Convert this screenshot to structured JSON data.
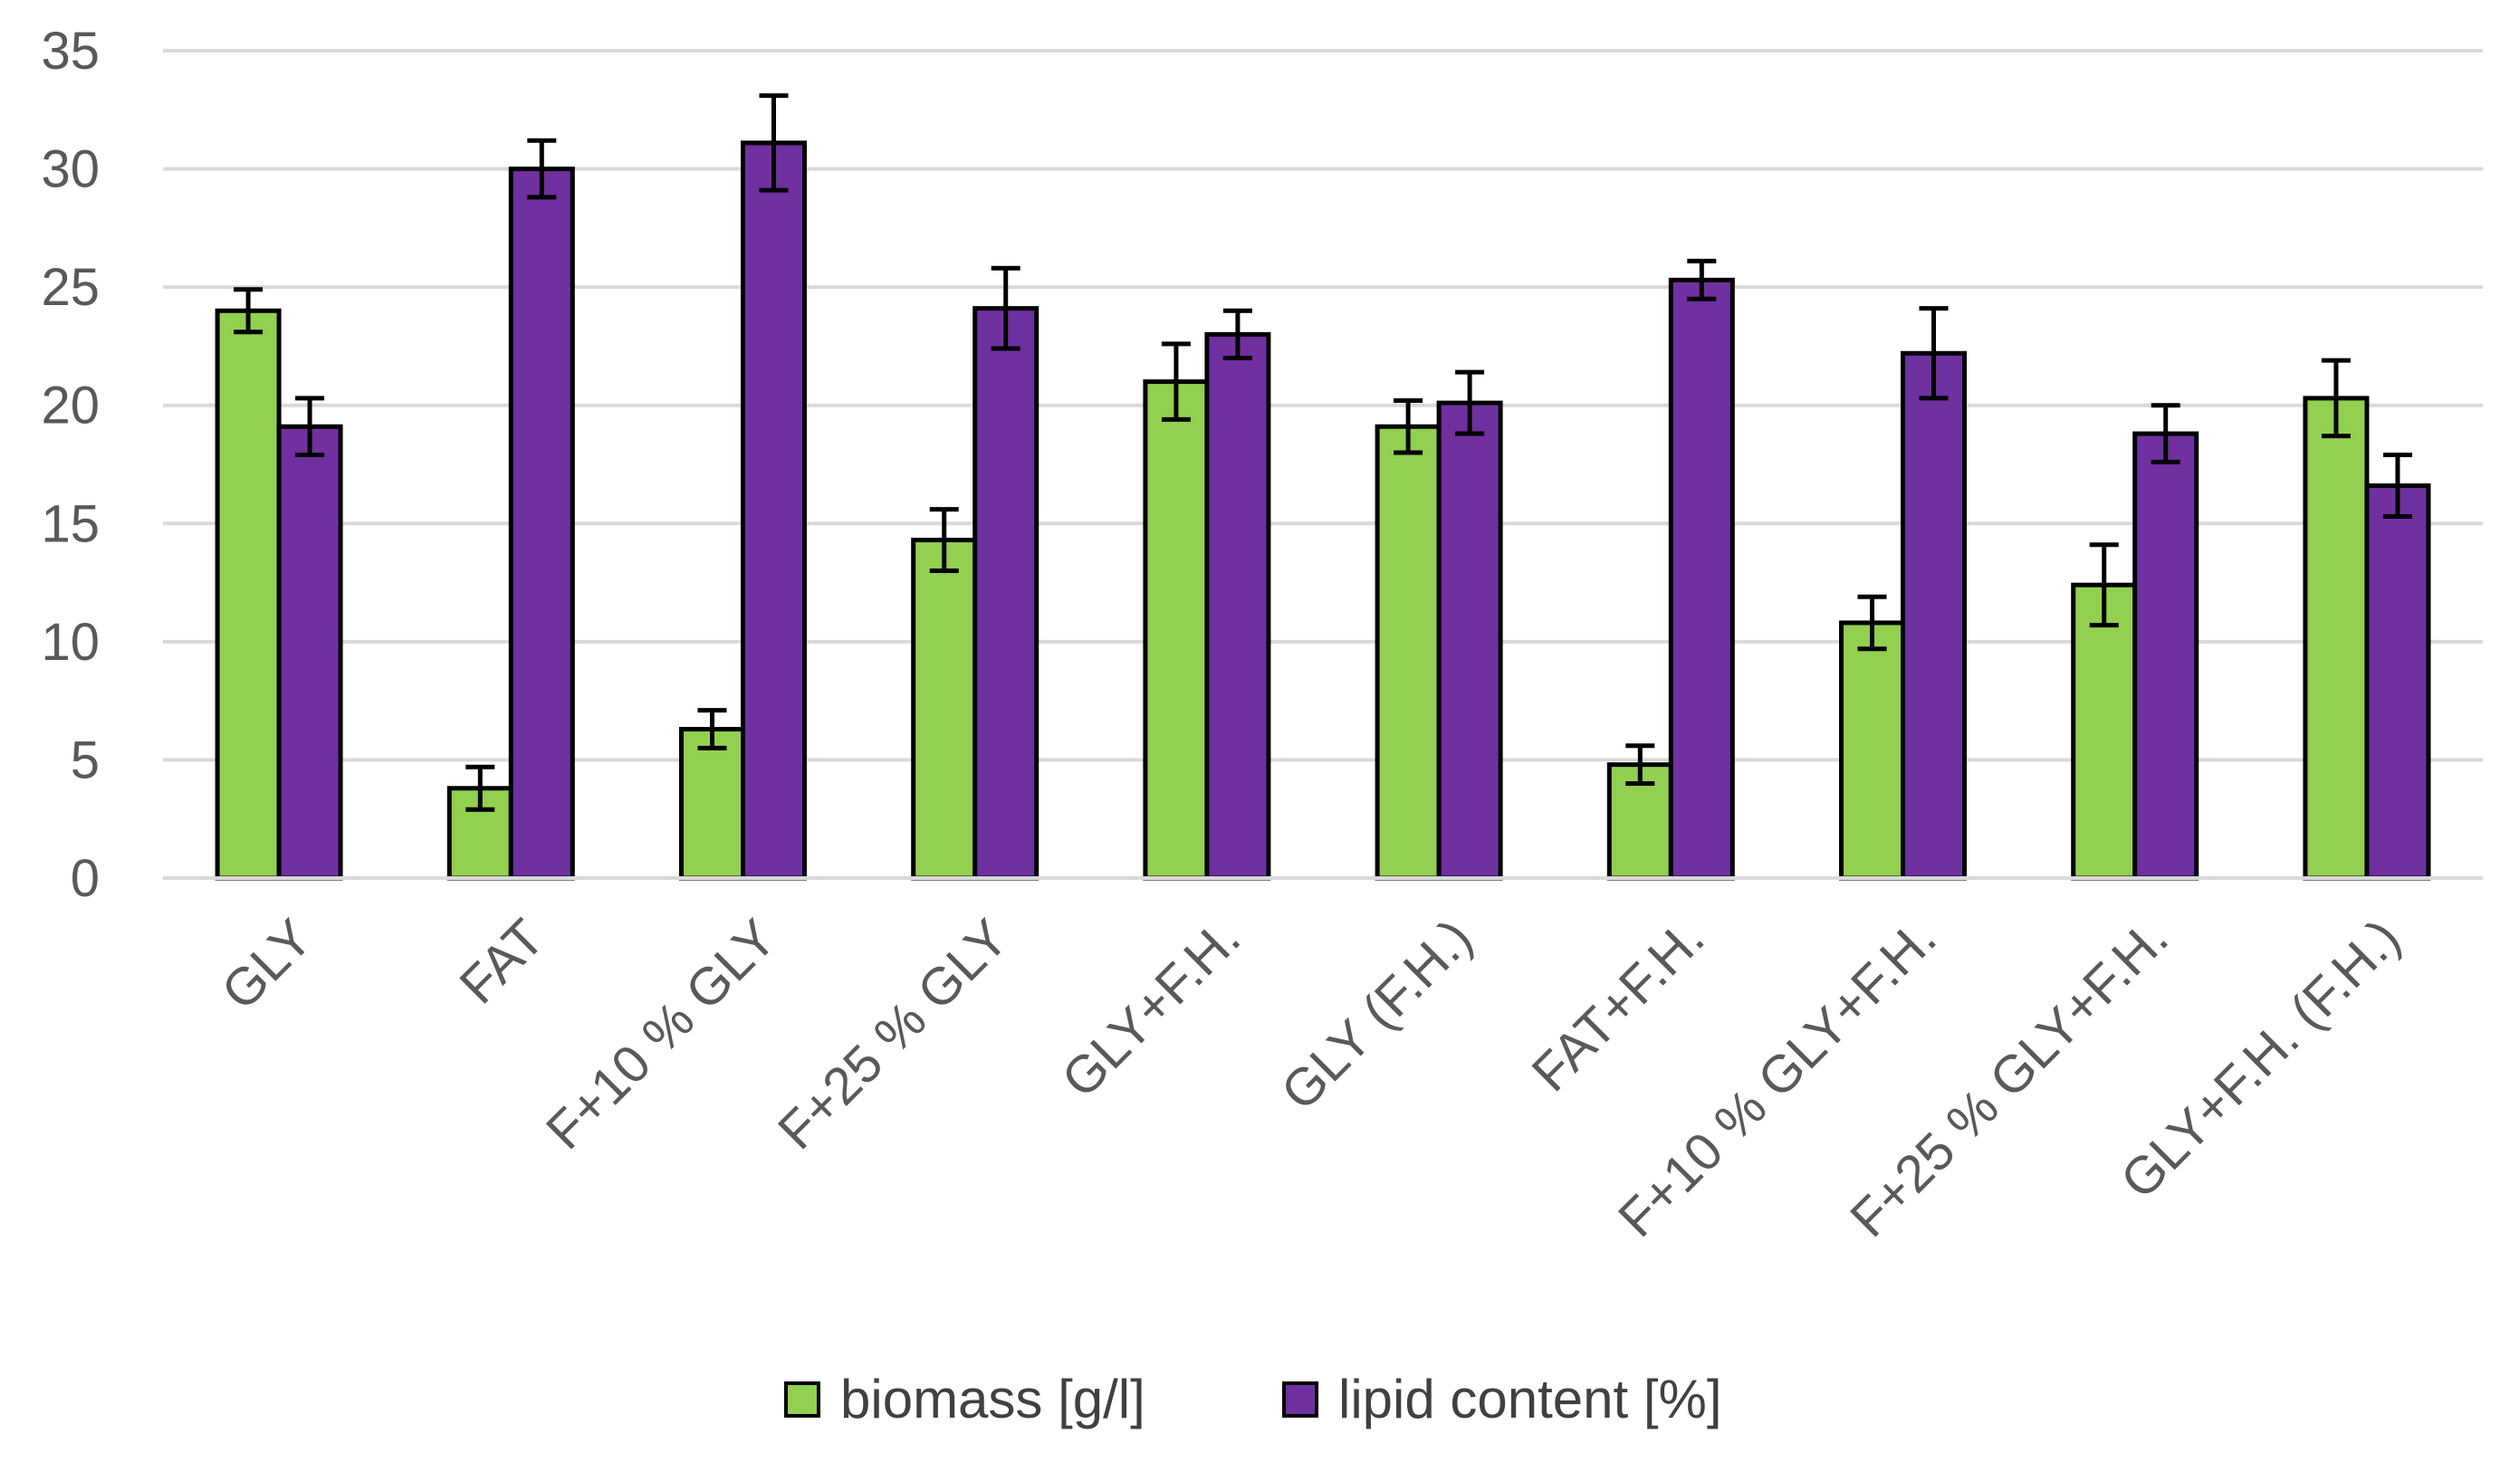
{
  "chart_data": {
    "type": "bar",
    "title": "",
    "xlabel": "",
    "ylabel": "",
    "ylim": [
      0,
      35
    ],
    "yticks": [
      0,
      5,
      10,
      15,
      20,
      25,
      30,
      35
    ],
    "grid": true,
    "legend_position": "bottom",
    "categories": [
      "GLY",
      "FAT",
      "F+10 % GLY",
      "F+25 % GLY",
      "GLY+F.H.",
      "GLY (F.H.)",
      "FAT+F.H.",
      "F+10 % GLY+F.H.",
      "F+25 % GLY+F.H.",
      "GLY+F.H. (F.H.)"
    ],
    "series": [
      {
        "name": "biomass [g/l]",
        "color": "#92d050",
        "values": [
          24.0,
          3.8,
          6.3,
          14.3,
          21.0,
          19.1,
          4.8,
          10.8,
          12.4,
          20.3
        ],
        "errors": [
          0.9,
          0.9,
          0.8,
          1.3,
          1.6,
          1.1,
          0.8,
          1.1,
          1.7,
          1.6
        ]
      },
      {
        "name": "lipid content [%]",
        "color": "#7030a0",
        "values": [
          19.1,
          30.0,
          31.1,
          24.1,
          23.0,
          20.1,
          25.3,
          22.2,
          18.8,
          16.6
        ],
        "errors": [
          1.2,
          1.2,
          2.0,
          1.7,
          1.0,
          1.3,
          0.8,
          1.9,
          1.2,
          1.3
        ]
      }
    ]
  }
}
